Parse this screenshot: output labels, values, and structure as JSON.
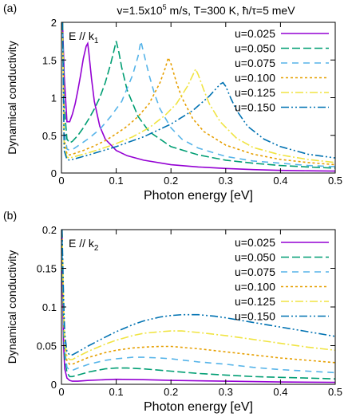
{
  "header": {
    "pre": "v=1.5x10",
    "sup": "5",
    "post": " m/s, T=300 K,  ħ/τ=5 meV"
  },
  "chart_data": [
    {
      "type": "line",
      "panel_label": "(a)",
      "annotation": {
        "text": "E // k",
        "sub": "1"
      },
      "xlabel": "Photon energy [eV]",
      "ylabel": "Dynamical conductivity",
      "xlim": [
        0,
        0.5
      ],
      "ylim": [
        0,
        2
      ],
      "xticks": [
        0,
        0.1,
        0.2,
        0.3,
        0.4,
        0.5
      ],
      "xtick_labels": [
        "0",
        "0.1",
        "0.2",
        "0.3",
        "0.4",
        "0.5"
      ],
      "yticks": [
        0,
        0.5,
        1,
        1.5,
        2
      ],
      "ytick_labels": [
        "0",
        "0.5",
        "1",
        "1.5",
        "2"
      ],
      "legend_position": "top-right",
      "grid": false,
      "series": [
        {
          "name": "u=0.025",
          "color": "#9400d3",
          "dash": "",
          "x": [
            0.002,
            0.005,
            0.01,
            0.015,
            0.02,
            0.025,
            0.03,
            0.035,
            0.04,
            0.045,
            0.048,
            0.05,
            0.055,
            0.06,
            0.07,
            0.08,
            0.1,
            0.12,
            0.15,
            0.2,
            0.25,
            0.3,
            0.35,
            0.4,
            0.45,
            0.5
          ],
          "y": [
            2.0,
            1.3,
            0.68,
            0.68,
            0.78,
            0.92,
            1.1,
            1.3,
            1.52,
            1.68,
            1.72,
            1.6,
            1.25,
            0.95,
            0.62,
            0.45,
            0.3,
            0.23,
            0.17,
            0.11,
            0.08,
            0.06,
            0.045,
            0.035,
            0.03,
            0.025
          ]
        },
        {
          "name": "u=0.050",
          "color": "#009e73",
          "dash": "10 4",
          "x": [
            0.002,
            0.005,
            0.01,
            0.015,
            0.02,
            0.03,
            0.04,
            0.05,
            0.06,
            0.07,
            0.08,
            0.09,
            0.095,
            0.1,
            0.105,
            0.11,
            0.12,
            0.14,
            0.16,
            0.2,
            0.25,
            0.3,
            0.35,
            0.4,
            0.45,
            0.5
          ],
          "y": [
            2.0,
            0.9,
            0.45,
            0.4,
            0.42,
            0.5,
            0.6,
            0.72,
            0.85,
            1.0,
            1.2,
            1.45,
            1.6,
            1.75,
            1.6,
            1.4,
            1.1,
            0.75,
            0.55,
            0.35,
            0.24,
            0.17,
            0.13,
            0.1,
            0.08,
            0.065
          ]
        },
        {
          "name": "u=0.075",
          "color": "#56b4e9",
          "dash": "8 6",
          "x": [
            0.002,
            0.005,
            0.01,
            0.015,
            0.02,
            0.03,
            0.05,
            0.07,
            0.09,
            0.11,
            0.13,
            0.14,
            0.145,
            0.15,
            0.16,
            0.17,
            0.18,
            0.2,
            0.22,
            0.25,
            0.3,
            0.35,
            0.4,
            0.45,
            0.5
          ],
          "y": [
            2.0,
            0.6,
            0.32,
            0.3,
            0.31,
            0.36,
            0.46,
            0.58,
            0.75,
            0.95,
            1.3,
            1.55,
            1.75,
            1.6,
            1.3,
            1.05,
            0.85,
            0.6,
            0.45,
            0.33,
            0.22,
            0.16,
            0.13,
            0.1,
            0.085
          ]
        },
        {
          "name": "u=0.100",
          "color": "#e69f00",
          "dash": "3 3",
          "x": [
            0.002,
            0.005,
            0.01,
            0.015,
            0.02,
            0.04,
            0.06,
            0.08,
            0.1,
            0.12,
            0.14,
            0.16,
            0.18,
            0.19,
            0.195,
            0.2,
            0.21,
            0.22,
            0.24,
            0.26,
            0.3,
            0.35,
            0.4,
            0.45,
            0.5
          ],
          "y": [
            2.0,
            0.45,
            0.25,
            0.24,
            0.25,
            0.3,
            0.36,
            0.43,
            0.52,
            0.62,
            0.75,
            0.92,
            1.2,
            1.4,
            1.53,
            1.45,
            1.2,
            1.0,
            0.72,
            0.55,
            0.37,
            0.25,
            0.18,
            0.14,
            0.11
          ]
        },
        {
          "name": "u=0.125",
          "color": "#f0e442",
          "dash": "10 3 2 3",
          "x": [
            0.002,
            0.005,
            0.01,
            0.015,
            0.02,
            0.05,
            0.08,
            0.1,
            0.13,
            0.16,
            0.19,
            0.21,
            0.23,
            0.24,
            0.245,
            0.25,
            0.26,
            0.27,
            0.29,
            0.32,
            0.35,
            0.4,
            0.45,
            0.5
          ],
          "y": [
            2.0,
            0.35,
            0.21,
            0.2,
            0.21,
            0.27,
            0.34,
            0.39,
            0.48,
            0.6,
            0.77,
            0.92,
            1.15,
            1.3,
            1.38,
            1.3,
            1.1,
            0.92,
            0.68,
            0.46,
            0.34,
            0.24,
            0.18,
            0.14
          ]
        },
        {
          "name": "u=0.150",
          "color": "#0072b2",
          "dash": "10 3 2 3 2 3",
          "x": [
            0.002,
            0.005,
            0.01,
            0.015,
            0.02,
            0.05,
            0.1,
            0.15,
            0.2,
            0.24,
            0.27,
            0.28,
            0.29,
            0.295,
            0.3,
            0.31,
            0.32,
            0.34,
            0.37,
            0.4,
            0.45,
            0.5
          ],
          "y": [
            2.0,
            0.3,
            0.18,
            0.17,
            0.18,
            0.24,
            0.35,
            0.48,
            0.65,
            0.83,
            1.02,
            1.1,
            1.18,
            1.2,
            1.15,
            0.98,
            0.83,
            0.62,
            0.45,
            0.35,
            0.25,
            0.2
          ]
        }
      ]
    },
    {
      "type": "line",
      "panel_label": "(b)",
      "annotation": {
        "text": "E // k",
        "sub": "2"
      },
      "xlabel": "Photon energy [eV]",
      "ylabel": "Dynamical conductivity",
      "xlim": [
        0,
        0.5
      ],
      "ylim": [
        0,
        0.2
      ],
      "xticks": [
        0,
        0.1,
        0.2,
        0.3,
        0.4,
        0.5
      ],
      "xtick_labels": [
        "0",
        "0.1",
        "0.2",
        "0.3",
        "0.4",
        "0.5"
      ],
      "yticks": [
        0,
        0.05,
        0.1,
        0.15,
        0.2
      ],
      "ytick_labels": [
        "0",
        "0.05",
        "0.1",
        "0.15",
        "0.2"
      ],
      "legend_position": "top-right",
      "grid": false,
      "series": [
        {
          "name": "u=0.025",
          "color": "#9400d3",
          "dash": "",
          "x": [
            0.001,
            0.002,
            0.004,
            0.006,
            0.01,
            0.015,
            0.02,
            0.03,
            0.05,
            0.08,
            0.1,
            0.15,
            0.2,
            0.3,
            0.4,
            0.5
          ],
          "y": [
            0.2,
            0.12,
            0.05,
            0.02,
            0.008,
            0.005,
            0.004,
            0.004,
            0.005,
            0.006,
            0.0065,
            0.006,
            0.005,
            0.004,
            0.003,
            0.0025
          ]
        },
        {
          "name": "u=0.050",
          "color": "#009e73",
          "dash": "10 4",
          "x": [
            0.001,
            0.002,
            0.004,
            0.006,
            0.01,
            0.015,
            0.02,
            0.03,
            0.05,
            0.08,
            0.1,
            0.12,
            0.15,
            0.2,
            0.25,
            0.3,
            0.35,
            0.4,
            0.45,
            0.5
          ],
          "y": [
            0.2,
            0.14,
            0.07,
            0.035,
            0.015,
            0.01,
            0.01,
            0.012,
            0.016,
            0.02,
            0.021,
            0.021,
            0.02,
            0.017,
            0.014,
            0.012,
            0.01,
            0.009,
            0.008,
            0.007
          ]
        },
        {
          "name": "u=0.075",
          "color": "#56b4e9",
          "dash": "8 6",
          "x": [
            0.001,
            0.002,
            0.004,
            0.006,
            0.01,
            0.015,
            0.02,
            0.03,
            0.05,
            0.08,
            0.1,
            0.13,
            0.15,
            0.18,
            0.2,
            0.25,
            0.3,
            0.35,
            0.4,
            0.45,
            0.5
          ],
          "y": [
            0.2,
            0.15,
            0.08,
            0.045,
            0.022,
            0.018,
            0.018,
            0.021,
            0.026,
            0.031,
            0.033,
            0.035,
            0.035,
            0.034,
            0.033,
            0.029,
            0.026,
            0.022,
            0.019,
            0.017,
            0.015
          ]
        },
        {
          "name": "u=0.100",
          "color": "#e69f00",
          "dash": "3 3",
          "x": [
            0.001,
            0.002,
            0.004,
            0.006,
            0.01,
            0.015,
            0.02,
            0.03,
            0.05,
            0.08,
            0.1,
            0.13,
            0.15,
            0.18,
            0.2,
            0.25,
            0.3,
            0.35,
            0.4,
            0.45,
            0.5
          ],
          "y": [
            0.2,
            0.16,
            0.09,
            0.05,
            0.03,
            0.026,
            0.026,
            0.029,
            0.035,
            0.041,
            0.044,
            0.047,
            0.048,
            0.049,
            0.049,
            0.046,
            0.042,
            0.038,
            0.034,
            0.031,
            0.028
          ]
        },
        {
          "name": "u=0.125",
          "color": "#f0e442",
          "dash": "10 3 2 3",
          "x": [
            0.001,
            0.002,
            0.004,
            0.006,
            0.01,
            0.015,
            0.02,
            0.03,
            0.05,
            0.08,
            0.1,
            0.13,
            0.15,
            0.18,
            0.2,
            0.22,
            0.25,
            0.3,
            0.35,
            0.4,
            0.45,
            0.5
          ],
          "y": [
            0.2,
            0.165,
            0.1,
            0.058,
            0.036,
            0.032,
            0.032,
            0.036,
            0.043,
            0.052,
            0.057,
            0.063,
            0.066,
            0.068,
            0.069,
            0.069,
            0.067,
            0.063,
            0.058,
            0.053,
            0.048,
            0.044
          ]
        },
        {
          "name": "u=0.150",
          "color": "#0072b2",
          "dash": "10 3 2 3 2 3",
          "x": [
            0.001,
            0.002,
            0.004,
            0.006,
            0.01,
            0.015,
            0.02,
            0.03,
            0.05,
            0.08,
            0.1,
            0.13,
            0.15,
            0.18,
            0.2,
            0.22,
            0.25,
            0.28,
            0.3,
            0.35,
            0.4,
            0.45,
            0.5
          ],
          "y": [
            0.2,
            0.17,
            0.11,
            0.065,
            0.042,
            0.038,
            0.038,
            0.042,
            0.05,
            0.061,
            0.068,
            0.077,
            0.082,
            0.087,
            0.089,
            0.09,
            0.09,
            0.088,
            0.086,
            0.08,
            0.074,
            0.068,
            0.062
          ]
        }
      ]
    }
  ]
}
